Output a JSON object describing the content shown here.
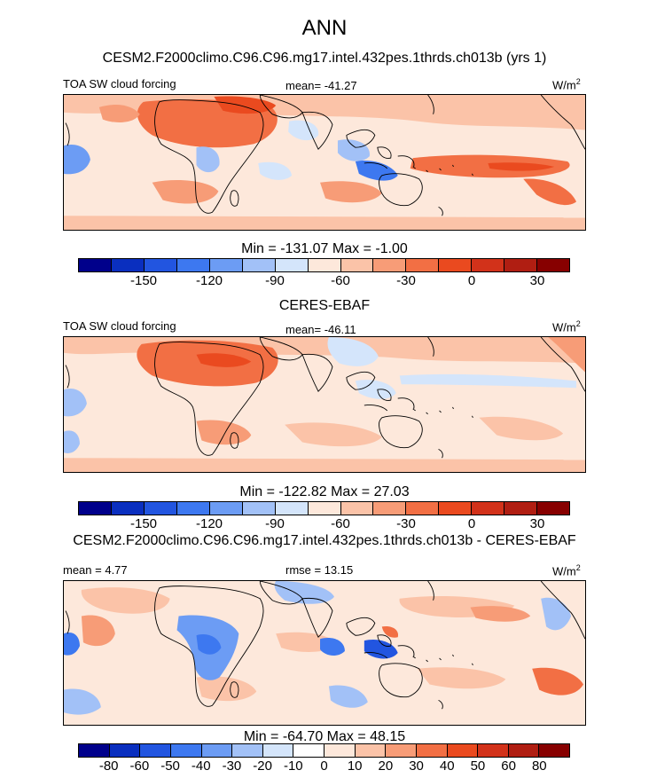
{
  "figure_title": "ANN",
  "colors": {
    "abs_palette": [
      "#00008b",
      "#0a2fbf",
      "#2255e0",
      "#3d78f0",
      "#6c9cf4",
      "#a2c1f7",
      "#d4e5fb",
      "#fde8db",
      "#fbc3a8",
      "#f79c77",
      "#f26f44",
      "#ea4a1f",
      "#d2321a",
      "#b01e12",
      "#870000"
    ],
    "diff_palette": [
      "#00008b",
      "#0a2fbf",
      "#2255e0",
      "#3d78f0",
      "#6c9cf4",
      "#a2c1f7",
      "#d4e5fb",
      "#ffffff",
      "#fde8db",
      "#fbc3a8",
      "#f79c77",
      "#f26f44",
      "#ea4a1f",
      "#d2321a",
      "#b01e12",
      "#870000"
    ],
    "land_outline": "#000000"
  },
  "panels": [
    {
      "title": "CESM2.F2000climo.C96.C96.mg17.intel.432pes.1thrds.ch013b (yrs 1)",
      "left_label": "TOA SW cloud forcing",
      "center_label": "mean= -41.27",
      "units": "W/m",
      "units_sup": "2",
      "minmax": "Min = -131.07 Max =  -1.00",
      "ticks": [
        "-150",
        "-120",
        "-90",
        "-60",
        "-30",
        "0",
        "30"
      ]
    },
    {
      "title": "CERES-EBAF",
      "left_label": "TOA SW cloud forcing",
      "center_label": "mean= -46.11",
      "units": "W/m",
      "units_sup": "2",
      "minmax": "Min = -122.82 Max =  27.03",
      "ticks": [
        "-150",
        "-120",
        "-90",
        "-60",
        "-30",
        "0",
        "30"
      ]
    },
    {
      "title": "CESM2.F2000climo.C96.C96.mg17.intel.432pes.1thrds.ch013b - CERES-EBAF",
      "left_label": "mean =  4.77",
      "center_label": "rmse =  13.15",
      "units": "W/m",
      "units_sup": "2",
      "minmax": "Min = -64.70 Max = 48.15",
      "ticks": [
        "-80",
        "-60",
        "-50",
        "-40",
        "-30",
        "-20",
        "-10",
        "0",
        "10",
        "20",
        "30",
        "40",
        "50",
        "60",
        "80"
      ]
    }
  ]
}
